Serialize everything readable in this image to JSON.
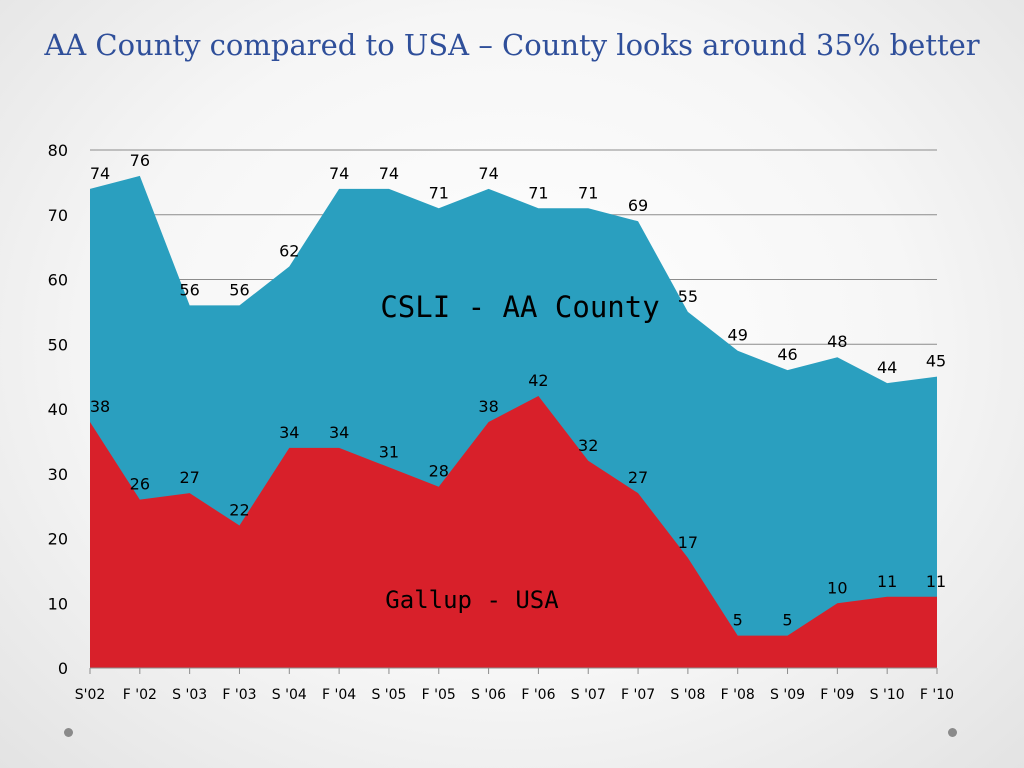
{
  "title": "AA County compared to USA – County looks around 35% better",
  "chart_data": {
    "type": "area",
    "categories": [
      "S'02",
      "F '02",
      "S '03",
      "F '03",
      "S '04",
      "F '04",
      "S '05",
      "F '05",
      "S '06",
      "F '06",
      "S '07",
      "F '07",
      "S '08",
      "F '08",
      "S '09",
      "F '09",
      "S '10",
      "F '10"
    ],
    "ylim": [
      0,
      80
    ],
    "yticks": [
      0,
      10,
      20,
      30,
      40,
      50,
      60,
      70,
      80
    ],
    "grid": true,
    "series": [
      {
        "name": "CSLI  - AA County",
        "color": "#2a9fbf",
        "values": [
          74,
          76,
          56,
          56,
          62,
          74,
          74,
          71,
          74,
          71,
          71,
          69,
          55,
          49,
          46,
          48,
          44,
          45
        ]
      },
      {
        "name": "Gallup - USA",
        "color": "#d8202a",
        "values": [
          38,
          26,
          27,
          22,
          34,
          34,
          31,
          28,
          38,
          42,
          32,
          27,
          17,
          5,
          5,
          10,
          11,
          11
        ]
      }
    ]
  }
}
